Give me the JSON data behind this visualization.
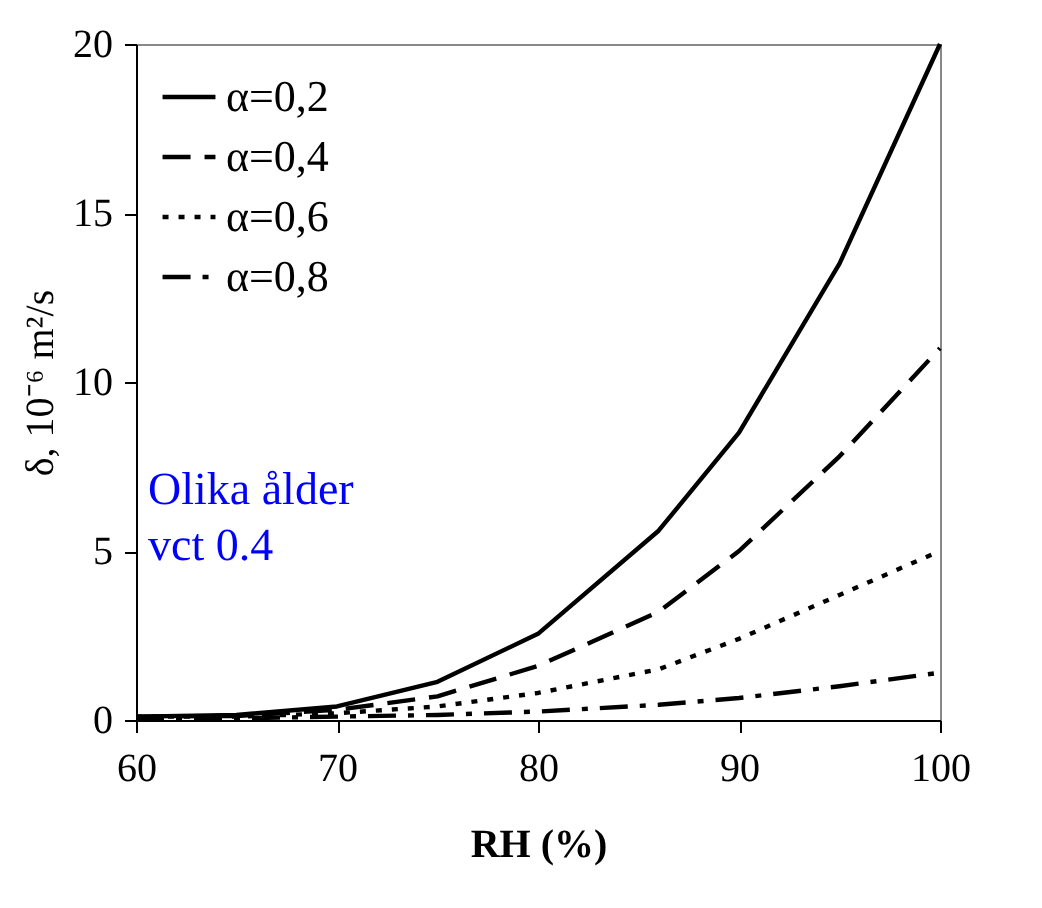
{
  "chart_data": {
    "type": "line",
    "xlabel": "RH (%)",
    "ylabel": "δ, 10⁻⁶ m²/s",
    "x": [
      60,
      65,
      70,
      75,
      80,
      86,
      90,
      95,
      100
    ],
    "xlim": [
      60,
      100
    ],
    "xticks": [
      60,
      70,
      80,
      90,
      100
    ],
    "ylim": [
      0,
      20
    ],
    "yticks": [
      0,
      5,
      10,
      15,
      20
    ],
    "grid": false,
    "legend": "top left",
    "marker": "none",
    "annotations": [
      "Olika ålder\nvct 0.4"
    ],
    "series": [
      {
        "name": "α=0,2",
        "color": "#000000",
        "line_style": "solid",
        "values": [
          0.1,
          0.15,
          0.4,
          1.13,
          2.55,
          5.6,
          8.5,
          13.5,
          20
        ]
      },
      {
        "name": "α=0,4",
        "color": "#000000",
        "line_style": "dashed",
        "values": [
          0.1,
          0.12,
          0.3,
          0.7,
          1.6,
          3.2,
          5.0,
          7.8,
          11.0
        ]
      },
      {
        "name": "α=0,6",
        "color": "#000000",
        "line_style": "dotted",
        "values": [
          0.1,
          0.1,
          0.2,
          0.4,
          0.8,
          1.5,
          2.4,
          3.7,
          5.0
        ]
      },
      {
        "name": "α=0,8",
        "color": "#000000",
        "line_style": "dashdot",
        "values": [
          0.05,
          0.05,
          0.1,
          0.15,
          0.25,
          0.45,
          0.65,
          1.0,
          1.4
        ]
      }
    ]
  }
}
